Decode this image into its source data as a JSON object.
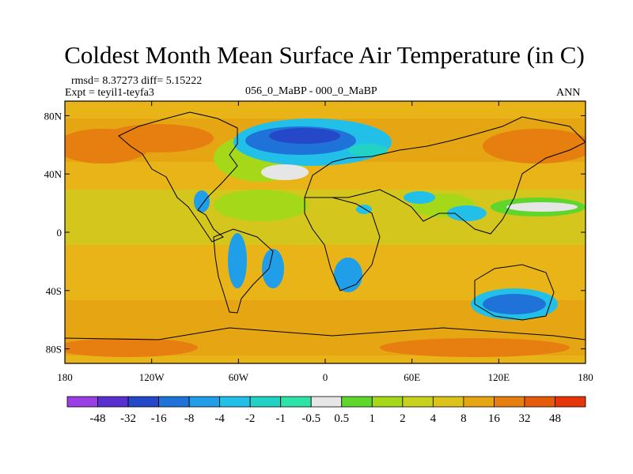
{
  "header": {
    "title": "Coldest Month Mean Surface Air Temperature (in C)",
    "stats": "rmsd= 8.37273  diff= 5.15222",
    "experiment": "Expt = teyil1-teyfa3",
    "subtitle": "056_0_MaBP - 000_0_MaBP",
    "season": "ANN"
  },
  "map": {
    "lat_ticks": [
      {
        "label": "80N",
        "lat": 80
      },
      {
        "label": "40N",
        "lat": 40
      },
      {
        "label": "0",
        "lat": 0
      },
      {
        "label": "40S",
        "lat": -40
      },
      {
        "label": "80S",
        "lat": -80
      }
    ],
    "lon_ticks": [
      {
        "label": "180",
        "lon": -180
      },
      {
        "label": "120W",
        "lon": -120
      },
      {
        "label": "60W",
        "lon": -60
      },
      {
        "label": "0",
        "lon": 0
      },
      {
        "label": "60E",
        "lon": 60
      },
      {
        "label": "120E",
        "lon": 120
      },
      {
        "label": "180",
        "lon": 180
      }
    ]
  },
  "colorbar": {
    "levels": [
      "-48",
      "-32",
      "-16",
      "-8",
      "-4",
      "-2",
      "-1",
      "-0.5",
      "0.5",
      "1",
      "2",
      "4",
      "8",
      "16",
      "32",
      "48"
    ],
    "colors": [
      "#9a3ee6",
      "#5a2fd2",
      "#2448c8",
      "#1f73d8",
      "#209ee8",
      "#22c0e8",
      "#22d2c4",
      "#2ee3a7",
      "#e6e6e6",
      "#5fd62c",
      "#a6d81a",
      "#c8d21c",
      "#dcc31a",
      "#e6a614",
      "#e67e10",
      "#e65a0c",
      "#e6350a"
    ]
  },
  "colors": {
    "background_field": "#e8b418",
    "warm": "#e6a614",
    "hot": "#e67e10",
    "yellow": "#d4c61c",
    "green": "#a6d81a",
    "cold": "#1f73d8",
    "coldest": "#2448c8",
    "neutral": "#e6e6e6",
    "coastline": "#000000"
  }
}
